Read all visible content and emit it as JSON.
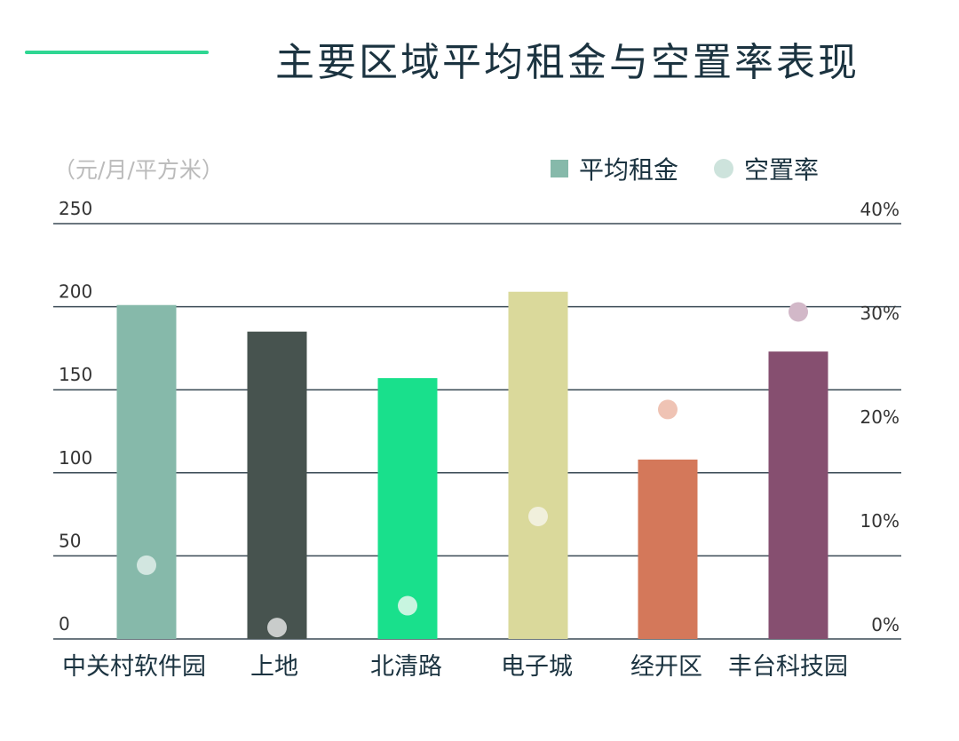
{
  "title": "主要区域平均租金与空置率表现",
  "colors": {
    "accent": "#2fd692",
    "grid": "#3a4a55",
    "text": "#1b3340"
  },
  "chart_data": {
    "type": "bar",
    "title": "主要区域平均租金与空置率表现",
    "ylabel": "（元/月/平方米）",
    "categories": [
      "中关村软件园",
      "上地",
      "北清路",
      "电子城",
      "经开区",
      "丰台科技园"
    ],
    "series": [
      {
        "name": "平均租金",
        "type": "bar",
        "axis": "left",
        "values": [
          201,
          185,
          157,
          209,
          108,
          173
        ],
        "colors": [
          "#86b9aa",
          "#47534f",
          "#19e08c",
          "#dad99b",
          "#d4785a",
          "#864f70"
        ]
      },
      {
        "name": "空置率",
        "type": "scatter",
        "axis": "right",
        "values": [
          7.1,
          1.1,
          3.2,
          11.8,
          22.1,
          31.5
        ],
        "colors": [
          "#d2e6e0",
          "#c9cccb",
          "#c8f5e0",
          "#f1f0dc",
          "#efc3b4",
          "#d2b8c8"
        ]
      }
    ],
    "left_axis": {
      "ylim": [
        0,
        250
      ],
      "ticks": [
        "0",
        "50",
        "100",
        "150",
        "200",
        "250"
      ]
    },
    "right_axis": {
      "ylim": [
        0,
        40
      ],
      "ticks": [
        "0%",
        "10%",
        "20%",
        "30%",
        "40%"
      ]
    },
    "grid": true,
    "legend": "top-right"
  }
}
